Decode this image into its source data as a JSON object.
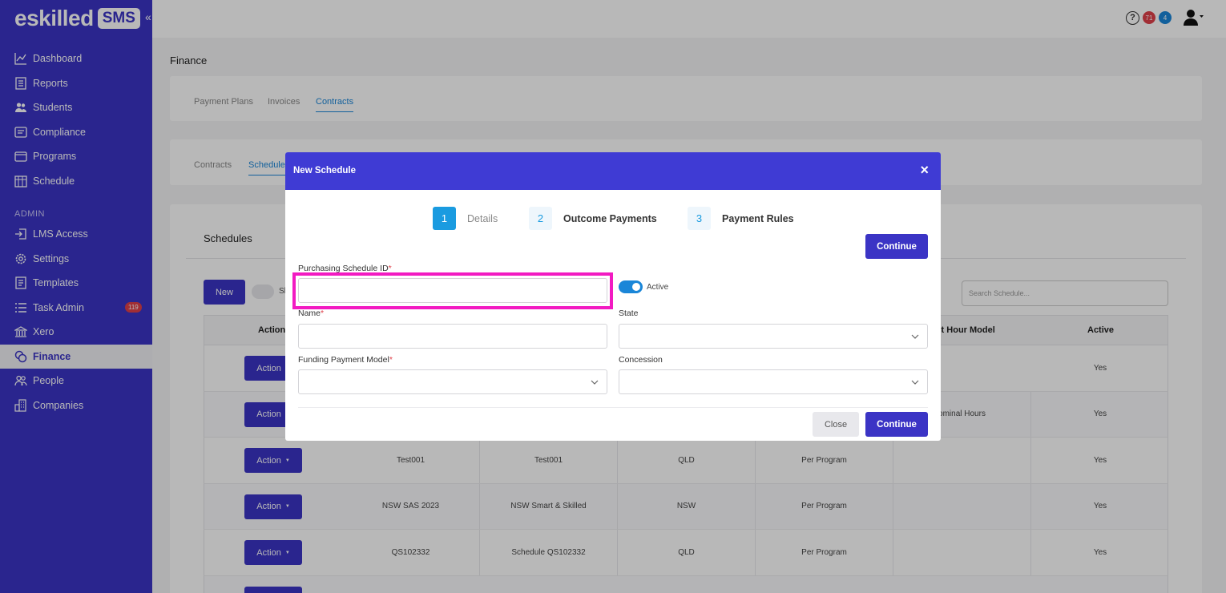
{
  "brand": {
    "word": "eskilled",
    "tag": "SMS"
  },
  "sidebar": {
    "items": [
      {
        "label": "Dashboard"
      },
      {
        "label": "Reports"
      },
      {
        "label": "Students"
      },
      {
        "label": "Compliance"
      },
      {
        "label": "Programs"
      },
      {
        "label": "Schedule"
      }
    ],
    "admin_section": "ADMIN",
    "admin_items": [
      {
        "label": "LMS Access"
      },
      {
        "label": "Settings"
      },
      {
        "label": "Templates"
      },
      {
        "label": "Task Admin",
        "badge": "119"
      },
      {
        "label": "Xero"
      },
      {
        "label": "Finance"
      },
      {
        "label": "People"
      },
      {
        "label": "Companies"
      }
    ]
  },
  "topbar": {
    "help": "?",
    "badge_red": "71",
    "badge_blue": "4"
  },
  "page": {
    "title": "Finance"
  },
  "tabs_top": [
    "Payment Plans",
    "Invoices",
    "Contracts"
  ],
  "tabs_sub": [
    "Contracts",
    "Schedule"
  ],
  "schedules": {
    "title": "Schedules",
    "new_label": "New",
    "toggle_label": "Sh",
    "search_placeholder": "Search Schedule...",
    "headers": {
      "actions": "Actions",
      "hour_model": "nent Hour Model",
      "active": "Active"
    },
    "action_label": "Action",
    "rows": [
      {
        "id": "",
        "name": "",
        "state": "",
        "model": "",
        "hour": "",
        "active": "Yes"
      },
      {
        "id": "",
        "name": "",
        "state": "",
        "model": "",
        "hour": "ominal Hours",
        "active": "Yes"
      },
      {
        "id": "Test001",
        "name": "Test001",
        "state": "QLD",
        "model": "Per Program",
        "hour": "",
        "active": "Yes"
      },
      {
        "id": "NSW SAS 2023",
        "name": "NSW Smart & Skilled",
        "state": "NSW",
        "model": "Per Program",
        "hour": "",
        "active": "Yes"
      },
      {
        "id": "QS102332",
        "name": "Schedule QS102332",
        "state": "QLD",
        "model": "Per Program",
        "hour": "",
        "active": "Yes"
      }
    ]
  },
  "modal": {
    "title": "New Schedule",
    "close_icon": "×",
    "steps": [
      {
        "num": "1",
        "label": "Details"
      },
      {
        "num": "2",
        "label": "Outcome Payments"
      },
      {
        "num": "3",
        "label": "Payment Rules"
      }
    ],
    "continue_label": "Continue",
    "close_label": "Close",
    "fields": {
      "schedule_id_label": "Purchasing Schedule ID",
      "active_label": "Active",
      "name_label": "Name",
      "state_label": "State",
      "funding_label": "Funding Payment Model",
      "concession_label": "Concession",
      "required_mark": "*"
    }
  },
  "colors": {
    "primary": "#3b34c5",
    "modal_header": "#3f3bd4",
    "accent": "#1a86d8",
    "highlight": "#f21bc2"
  }
}
